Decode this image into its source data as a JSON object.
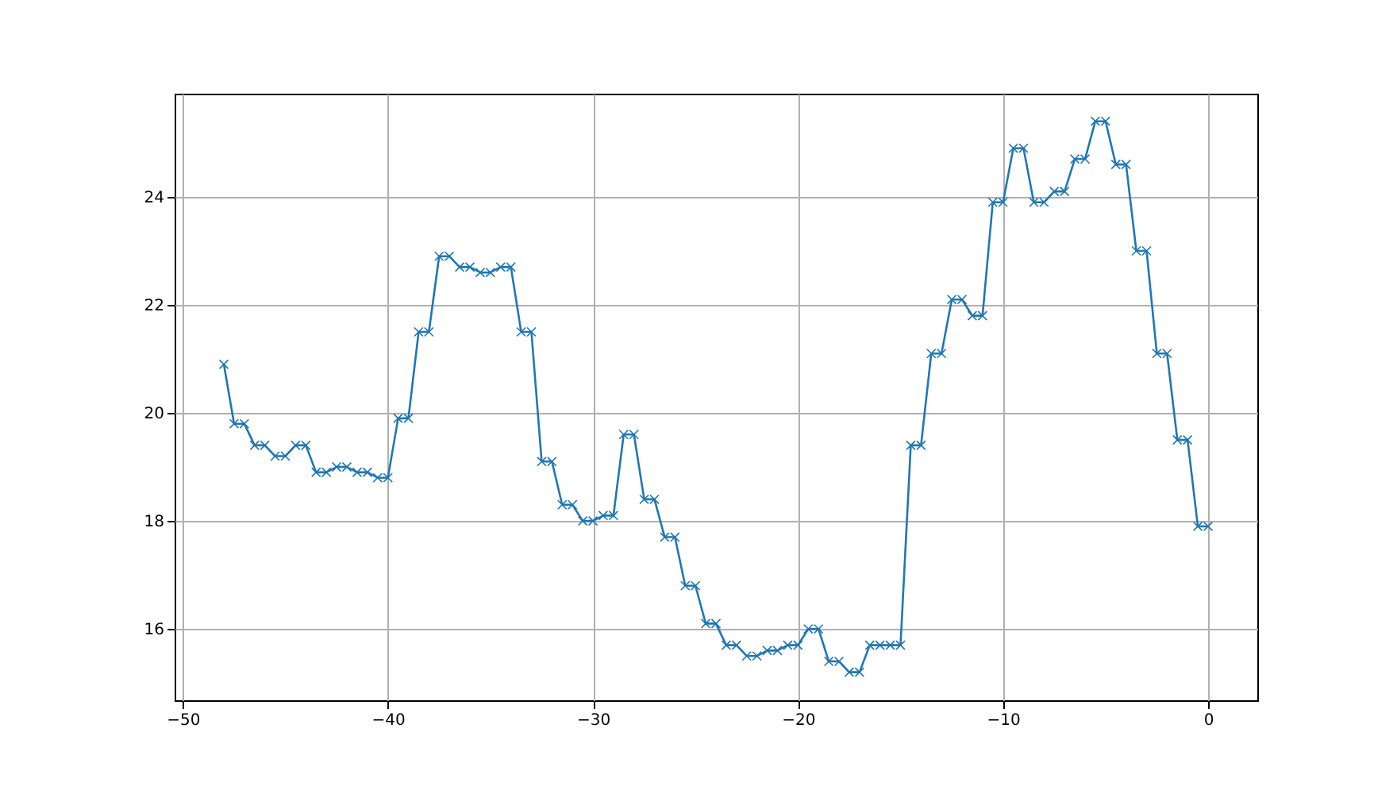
{
  "chart_data": {
    "type": "line",
    "marker": "cross",
    "grid": true,
    "line_style": "solid",
    "xlim": [
      -50.4,
      2.4
    ],
    "ylim": [
      14.68,
      25.91
    ],
    "xticks": [
      -50,
      -40,
      -30,
      -20,
      -10,
      0
    ],
    "yticks": [
      16,
      18,
      20,
      22,
      24
    ],
    "x": [
      -48,
      -47.5,
      -47,
      -46.5,
      -46,
      -45.5,
      -45,
      -44.5,
      -44,
      -43.5,
      -43,
      -42.5,
      -42,
      -41.5,
      -41,
      -40.5,
      -40,
      -39.5,
      -39,
      -38.5,
      -38,
      -37.5,
      -37,
      -36.5,
      -36,
      -35.5,
      -35,
      -34.5,
      -34,
      -33.5,
      -33,
      -32.5,
      -32,
      -31.5,
      -31,
      -30.5,
      -30,
      -29.5,
      -29,
      -28.5,
      -28,
      -27.5,
      -27,
      -26.5,
      -26,
      -25.5,
      -25,
      -24.5,
      -24,
      -23.5,
      -23,
      -22.5,
      -22,
      -21.5,
      -21,
      -20.5,
      -20,
      -19.5,
      -19,
      -18.5,
      -18,
      -17.5,
      -17,
      -16.5,
      -16,
      -15.5,
      -15,
      -14.5,
      -14,
      -13.5,
      -13,
      -12.5,
      -12,
      -11.5,
      -11,
      -10.5,
      -10,
      -9.5,
      -9,
      -8.5,
      -8,
      -7.5,
      -7,
      -6.5,
      -6,
      -5.5,
      -5,
      -4.5,
      -4,
      -3.5,
      -3,
      -2.5,
      -2,
      -1.5,
      -1,
      -0.5,
      0
    ],
    "series": [
      {
        "color": "#1f77b4",
        "values": [
          20.9,
          19.8,
          19.8,
          19.4,
          19.4,
          19.2,
          19.2,
          19.4,
          19.4,
          18.9,
          18.9,
          19.0,
          19.0,
          18.9,
          18.9,
          18.8,
          18.8,
          19.9,
          19.9,
          21.5,
          21.5,
          22.9,
          22.9,
          22.7,
          22.7,
          22.6,
          22.6,
          22.7,
          22.7,
          21.5,
          21.5,
          19.1,
          19.1,
          18.3,
          18.3,
          18.0,
          18.0,
          18.1,
          18.1,
          19.6,
          19.6,
          18.4,
          18.4,
          17.7,
          17.7,
          16.8,
          16.8,
          16.1,
          16.1,
          15.7,
          15.7,
          15.5,
          15.5,
          15.6,
          15.6,
          15.7,
          15.7,
          16.0,
          16.0,
          15.4,
          15.4,
          15.2,
          15.2,
          15.7,
          15.7,
          15.7,
          15.7,
          19.4,
          19.4,
          21.1,
          21.1,
          22.1,
          22.1,
          21.8,
          21.8,
          23.9,
          23.9,
          24.9,
          24.9,
          23.9,
          23.9,
          24.1,
          24.1,
          24.7,
          24.7,
          25.4,
          25.4,
          24.6,
          24.6,
          23.0,
          23.0,
          21.1,
          21.1,
          19.5,
          19.5,
          17.9,
          17.9
        ]
      }
    ]
  }
}
